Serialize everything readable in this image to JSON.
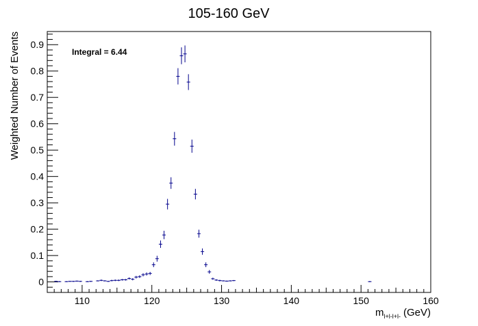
{
  "chart_data": {
    "type": "scatter",
    "title": "105-160 GeV",
    "ylabel": "Weighted Number of Events",
    "xlabel_main": "m",
    "xlabel_sub": "l+l-l+l-",
    "xlabel_unit": "(GeV)",
    "annotation": "Integral = 6.44",
    "xlim": [
      105,
      160
    ],
    "ylim": [
      -0.04,
      0.95
    ],
    "xticks": [
      110,
      120,
      130,
      140,
      150,
      160
    ],
    "yticks": [
      0,
      0.1,
      0.2,
      0.3,
      0.4,
      0.5,
      0.6,
      0.7,
      0.8,
      0.9
    ],
    "bin_width": 0.5,
    "marker_color": "#00008b",
    "series": [
      {
        "x": [
          106.25,
          106.75,
          107.75,
          108.25,
          108.75,
          109.25,
          109.75,
          110.75,
          111.25,
          112.25,
          112.75,
          113.25,
          113.75,
          114.25,
          114.75,
          115.25,
          115.75,
          116.25,
          116.75,
          117.25,
          117.75,
          118.25,
          118.75,
          119.25,
          119.75,
          120.25,
          120.75,
          121.25,
          121.75,
          122.25,
          122.75,
          123.25,
          123.75,
          124.25,
          124.75,
          125.25,
          125.75,
          126.25,
          126.75,
          127.25,
          127.75,
          128.25,
          128.75,
          129.25,
          129.75,
          130.25,
          130.75,
          131.25,
          131.75,
          151.25
        ],
        "y": [
          0.002,
          0.001,
          0.001,
          0.002,
          0.002,
          0.003,
          0.002,
          0.001,
          0.002,
          0.004,
          0.006,
          0.004,
          0.002,
          0.005,
          0.006,
          0.006,
          0.008,
          0.008,
          0.013,
          0.01,
          0.018,
          0.02,
          0.027,
          0.03,
          0.032,
          0.065,
          0.088,
          0.143,
          0.178,
          0.295,
          0.375,
          0.543,
          0.78,
          0.858,
          0.865,
          0.758,
          0.515,
          0.333,
          0.183,
          0.115,
          0.065,
          0.038,
          0.012,
          0.007,
          0.005,
          0.004,
          0.003,
          0.004,
          0.005,
          0.001
        ],
        "err": [
          0.002,
          0.002,
          0.002,
          0.002,
          0.002,
          0.002,
          0.002,
          0.002,
          0.002,
          0.002,
          0.003,
          0.002,
          0.002,
          0.003,
          0.003,
          0.003,
          0.003,
          0.003,
          0.004,
          0.004,
          0.005,
          0.005,
          0.006,
          0.006,
          0.006,
          0.009,
          0.011,
          0.014,
          0.016,
          0.02,
          0.022,
          0.026,
          0.031,
          0.032,
          0.032,
          0.03,
          0.025,
          0.02,
          0.015,
          0.012,
          0.009,
          0.007,
          0.004,
          0.003,
          0.003,
          0.002,
          0.002,
          0.002,
          0.002,
          0.002
        ]
      }
    ]
  }
}
